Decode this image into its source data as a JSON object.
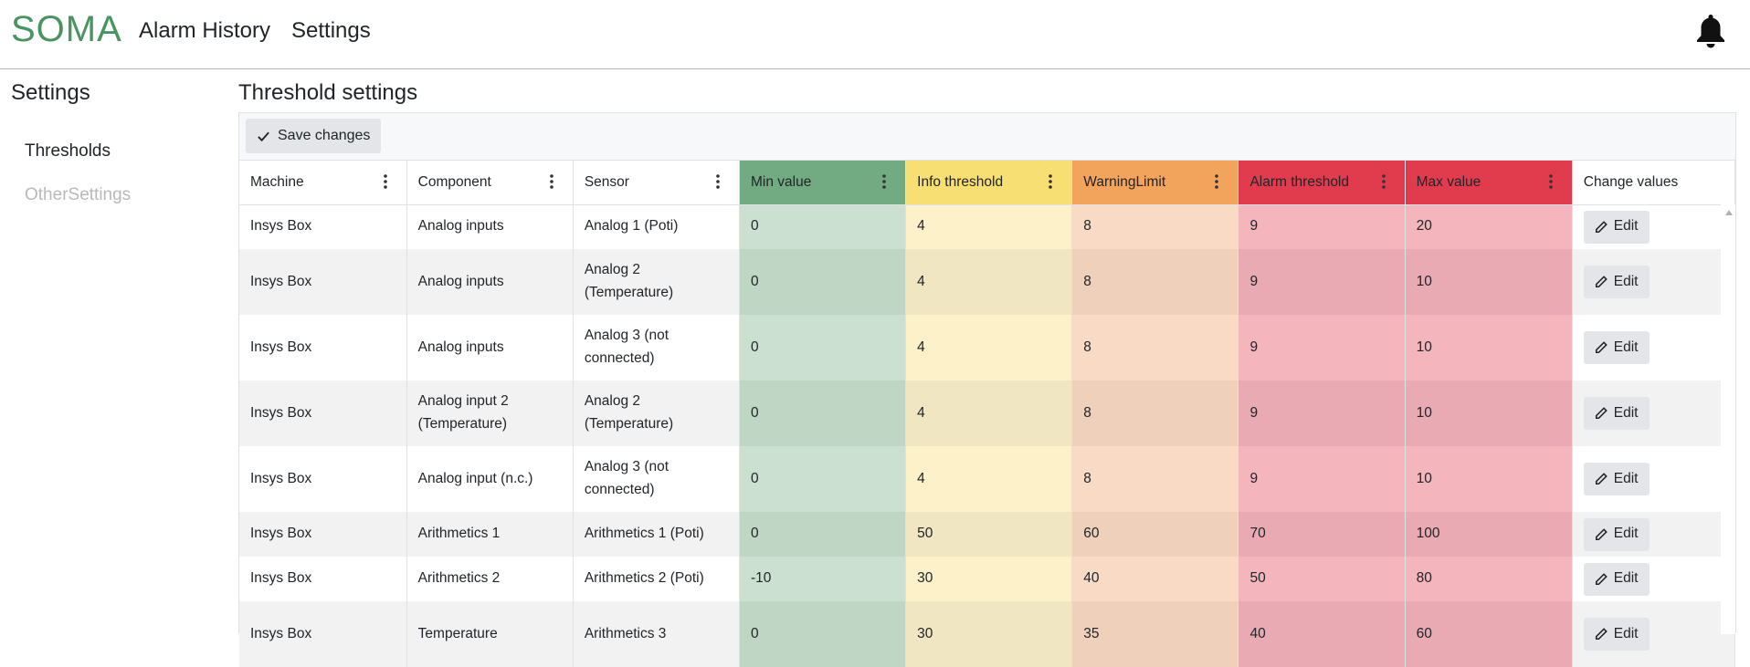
{
  "app": {
    "brand": "SOMA"
  },
  "nav": {
    "alarm_history": "Alarm History",
    "settings": "Settings"
  },
  "sidebar": {
    "title": "Settings",
    "items": [
      "Thresholds",
      "OtherSettings"
    ]
  },
  "main": {
    "title": "Threshold settings",
    "save_label": "Save changes",
    "edit_label": "Edit"
  },
  "colors": {
    "brand": "#4a9460",
    "min": "#72ab81",
    "info": "#f7df73",
    "warning": "#f2a45d",
    "alarm": "#e13c4d",
    "max": "#e13c4d"
  },
  "table": {
    "columns": [
      "Machine",
      "Component",
      "Sensor",
      "Min value",
      "Info threshold",
      "WarningLimit",
      "Alarm threshold",
      "Max value",
      "Change values"
    ],
    "rows": [
      [
        "Insys Box",
        "Analog inputs",
        "Analog 1 (Poti)",
        "0",
        "4",
        "8",
        "9",
        "20"
      ],
      [
        "Insys Box",
        "Analog inputs",
        "Analog 2 (Temperature)",
        "0",
        "4",
        "8",
        "9",
        "10"
      ],
      [
        "Insys Box",
        "Analog inputs",
        "Analog 3 (not connected)",
        "0",
        "4",
        "8",
        "9",
        "10"
      ],
      [
        "Insys Box",
        "Analog input 2 (Temperature)",
        "Analog 2 (Temperature)",
        "0",
        "4",
        "8",
        "9",
        "10"
      ],
      [
        "Insys Box",
        "Analog input (n.c.)",
        "Analog 3 (not connected)",
        "0",
        "4",
        "8",
        "9",
        "10"
      ],
      [
        "Insys Box",
        "Arithmetics 1",
        "Arithmetics 1 (Poti)",
        "0",
        "50",
        "60",
        "70",
        "100"
      ],
      [
        "Insys Box",
        "Arithmetics 2",
        "Arithmetics 2 (Poti)",
        "-10",
        "30",
        "40",
        "50",
        "80"
      ],
      [
        "Insys Box",
        "Temperature",
        "Arithmetics 3",
        "0",
        "30",
        "35",
        "40",
        "60"
      ]
    ]
  }
}
